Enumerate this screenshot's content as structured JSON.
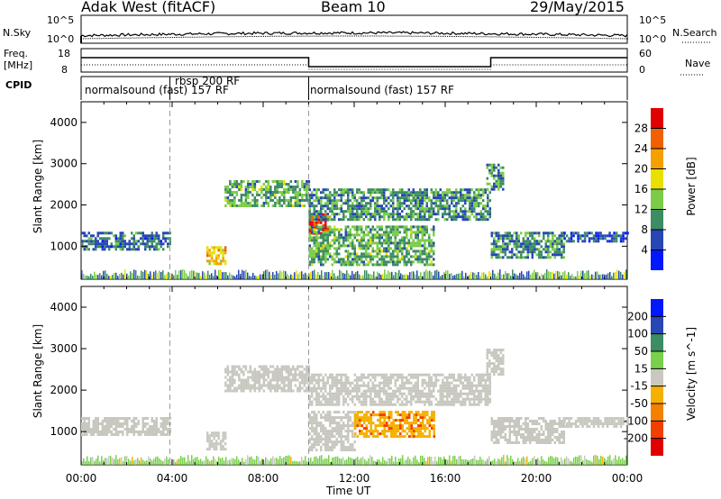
{
  "header": {
    "station": "Adak West (fitACF)",
    "beam": "Beam 10",
    "date": "29/May/2015"
  },
  "top_panels": {
    "nsky_label": "N.Sky",
    "nsky_ticks": [
      "10^5",
      "10^0"
    ],
    "nsearch_label": "N.Search",
    "nsearch_ticks": [
      "10^5",
      "10^0"
    ],
    "freq_label_1": "Freq.",
    "freq_label_2": "[MHz]",
    "freq_ticks": [
      "18",
      "8"
    ],
    "nave_label": "Nave",
    "nave_ticks": [
      "60",
      "0"
    ],
    "cpid_label": "CPID",
    "cpid_segments": [
      {
        "label": "normalsound (fast) 157 RF"
      },
      {
        "label": "rbsp 200 RF"
      },
      {
        "label": "normalsound (fast) 157 RF"
      }
    ]
  },
  "time_axis": {
    "label": "Time UT",
    "ticks": [
      "00:00",
      "04:00",
      "08:00",
      "12:00",
      "16:00",
      "20:00",
      "00:00"
    ]
  },
  "colors": {
    "power_scale": [
      "#0018ff",
      "#2846b4",
      "#3c8c64",
      "#7ccc48",
      "#e8e000",
      "#f3a000",
      "#f06000",
      "#e00000"
    ],
    "velocity_scale": [
      "#e00000",
      "#f04000",
      "#f38000",
      "#f5b000",
      "#c8c8c0",
      "#7ad04c",
      "#3c8c64",
      "#2846b4",
      "#0018ff"
    ],
    "ground_scatter": "#c8c8c0"
  },
  "chart_data": [
    {
      "type": "heatmap",
      "panel": "power",
      "xlabel": "Time UT",
      "ylabel": "Slant Range [km]",
      "xlim": [
        0,
        24
      ],
      "ylim": [
        200,
        4500
      ],
      "yticks": [
        "1000",
        "2000",
        "3000",
        "4000"
      ],
      "colorbar": {
        "label": "Power [dB]",
        "ticks": [
          "4",
          "8",
          "12",
          "16",
          "20",
          "24",
          "28"
        ],
        "range": [
          0,
          32
        ]
      },
      "regions": [
        {
          "t_start": 0.0,
          "t_end": 3.9,
          "range_min": 950,
          "range_max": 1350,
          "value": 8
        },
        {
          "t_start": 5.5,
          "t_end": 6.3,
          "range_min": 550,
          "range_max": 1000,
          "value": 20
        },
        {
          "t_start": 6.3,
          "t_end": 10.0,
          "range_min": 1950,
          "range_max": 2600,
          "value": 12
        },
        {
          "t_start": 10.0,
          "t_end": 10.8,
          "range_min": 1300,
          "range_max": 1800,
          "value": 28
        },
        {
          "t_start": 10.0,
          "t_end": 18.0,
          "range_min": 1650,
          "range_max": 2400,
          "value": 10
        },
        {
          "t_start": 10.0,
          "t_end": 15.5,
          "range_min": 550,
          "range_max": 1500,
          "value": 12
        },
        {
          "t_start": 17.8,
          "t_end": 18.5,
          "range_min": 2400,
          "range_max": 3000,
          "value": 10
        },
        {
          "t_start": 18.0,
          "t_end": 21.2,
          "range_min": 700,
          "range_max": 1350,
          "value": 10
        },
        {
          "t_start": 21.2,
          "t_end": 24.0,
          "range_min": 1150,
          "range_max": 1350,
          "value": 6
        }
      ]
    },
    {
      "type": "heatmap",
      "panel": "velocity",
      "xlabel": "Time UT",
      "ylabel": "Slant Range [km]",
      "xlim": [
        0,
        24
      ],
      "ylim": [
        200,
        4500
      ],
      "yticks": [
        "1000",
        "2000",
        "3000",
        "4000"
      ],
      "colorbar": {
        "label": "Velocity [m s^-1]",
        "ticks": [
          "200",
          "100",
          "50",
          "15",
          "-15",
          "-50",
          "-100",
          "-200"
        ],
        "range": [
          -250,
          250
        ]
      },
      "regions": [
        {
          "t_start": 0.0,
          "t_end": 3.9,
          "range_min": 950,
          "range_max": 1350,
          "value": 0
        },
        {
          "t_start": 5.5,
          "t_end": 6.3,
          "range_min": 550,
          "range_max": 1000,
          "value": 0
        },
        {
          "t_start": 6.3,
          "t_end": 10.0,
          "range_min": 1950,
          "range_max": 2600,
          "value": 0
        },
        {
          "t_start": 10.0,
          "t_end": 18.0,
          "range_min": 1650,
          "range_max": 2400,
          "value": 0
        },
        {
          "t_start": 10.0,
          "t_end": 12.0,
          "range_min": 550,
          "range_max": 1500,
          "value": 0
        },
        {
          "t_start": 12.0,
          "t_end": 15.5,
          "range_min": 900,
          "range_max": 1500,
          "value": -40
        },
        {
          "t_start": 17.8,
          "t_end": 18.5,
          "range_min": 2400,
          "range_max": 3000,
          "value": 0
        },
        {
          "t_start": 18.0,
          "t_end": 21.2,
          "range_min": 700,
          "range_max": 1350,
          "value": 0
        },
        {
          "t_start": 21.2,
          "t_end": 24.0,
          "range_min": 1150,
          "range_max": 1350,
          "value": 0
        }
      ]
    }
  ]
}
